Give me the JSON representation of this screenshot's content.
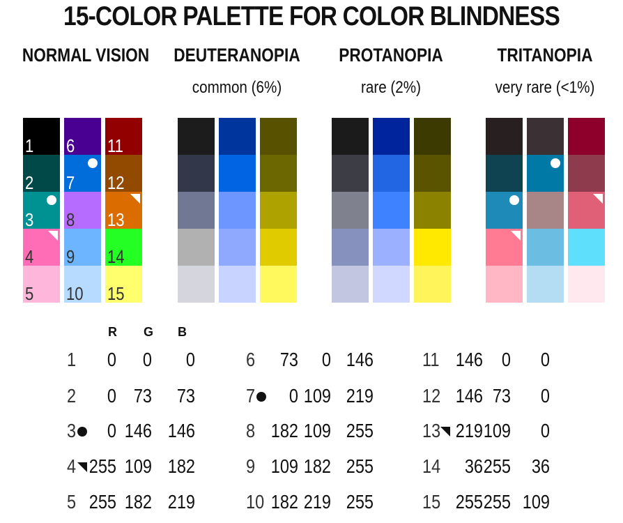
{
  "title": "15-COLOR PALETTE FOR COLOR BLINDNESS",
  "panels": [
    {
      "heading": "NORMAL VISION",
      "subtitle": "",
      "columns": [
        [
          "#000000",
          "#004949",
          "#009292",
          "#ff6db6",
          "#ffb6db"
        ],
        [
          "#490092",
          "#006ddb",
          "#b66dff",
          "#6db6ff",
          "#b6dbff"
        ],
        [
          "#920000",
          "#924900",
          "#db6d00",
          "#24ff24",
          "#ffff6d"
        ]
      ]
    },
    {
      "heading": "DEUTERANOPIA",
      "subtitle": "common (6%)",
      "columns": [
        [
          "#1c1c1c",
          "#33374a",
          "#717894",
          "#b1b1b1",
          "#d5d6dd"
        ],
        [
          "#00359d",
          "#0064e3",
          "#6d97ff",
          "#8ea9ff",
          "#c8d4ff"
        ],
        [
          "#585200",
          "#6d6700",
          "#ada200",
          "#e0cb00",
          "#fff95e"
        ]
      ]
    },
    {
      "heading": "PROTANOPIA",
      "subtitle": "rare (2%)",
      "columns": [
        [
          "#1b1b1b",
          "#3d3e45",
          "#7f828e",
          "#8691be",
          "#c2c6e1"
        ],
        [
          "#00249b",
          "#2266e3",
          "#3e82ff",
          "#9bb0ff",
          "#d0d8ff"
        ],
        [
          "#3d3a00",
          "#5a5300",
          "#8b8300",
          "#ffe900",
          "#fff45a"
        ]
      ]
    },
    {
      "heading": "TRITANOPIA",
      "subtitle": "very rare (<1%)",
      "columns": [
        [
          "#282020",
          "#0f4351",
          "#1d8ab7",
          "#ff7a92",
          "#ffb7c6"
        ],
        [
          "#3b3134",
          "#0079a6",
          "#a88587",
          "#6bbde2",
          "#b4ddf3"
        ],
        [
          "#8e002b",
          "#8f3b4e",
          "#df6077",
          "#5ee0fc",
          "#ffe9ef"
        ]
      ]
    }
  ],
  "swatch_numbers": [
    "1",
    "2",
    "3",
    "4",
    "5",
    "6",
    "7",
    "8",
    "9",
    "10",
    "11",
    "12",
    "13",
    "14",
    "15"
  ],
  "rgb_header": [
    "R",
    "G",
    "B"
  ],
  "rgb_table": [
    {
      "n": "1",
      "r": "0",
      "g": "0",
      "b": "0"
    },
    {
      "n": "2",
      "r": "0",
      "g": "73",
      "b": "73"
    },
    {
      "n": "3",
      "r": "0",
      "g": "146",
      "b": "146",
      "marker": "dot"
    },
    {
      "n": "4",
      "r": "255",
      "g": "109",
      "b": "182",
      "marker": "triangle"
    },
    {
      "n": "5",
      "r": "255",
      "g": "182",
      "b": "219"
    },
    {
      "n": "6",
      "r": "73",
      "g": "0",
      "b": "146"
    },
    {
      "n": "7",
      "r": "0",
      "g": "109",
      "b": "219",
      "marker": "dot"
    },
    {
      "n": "8",
      "r": "182",
      "g": "109",
      "b": "255"
    },
    {
      "n": "9",
      "r": "109",
      "g": "182",
      "b": "255"
    },
    {
      "n": "10",
      "r": "182",
      "g": "219",
      "b": "255"
    },
    {
      "n": "11",
      "r": "146",
      "g": "0",
      "b": "0"
    },
    {
      "n": "12",
      "r": "146",
      "g": "73",
      "b": "0"
    },
    {
      "n": "13",
      "r": "219",
      "g": "109",
      "b": "0",
      "marker": "triangle"
    },
    {
      "n": "14",
      "r": "36",
      "g": "255",
      "b": "36"
    },
    {
      "n": "15",
      "r": "255",
      "g": "255",
      "b": "109"
    }
  ],
  "marked_swatches": {
    "normal": {
      "dot": [
        "3",
        "7"
      ],
      "triangle": [
        "4",
        "13"
      ]
    },
    "tritanopia": {
      "dot": [
        "c1r3",
        "c2r2"
      ],
      "triangle": [
        "c1r4",
        "c3r3"
      ]
    }
  }
}
